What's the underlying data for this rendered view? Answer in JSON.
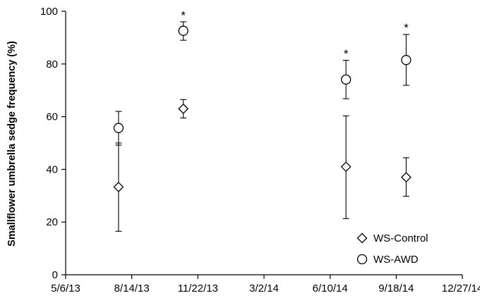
{
  "chart_data": {
    "type": "scatter",
    "title": "",
    "xlabel": "",
    "ylabel": "Smallflower umbrella sedge  frequency (%)",
    "ylim": [
      0,
      100
    ],
    "yticks": [
      0,
      20,
      40,
      60,
      80,
      100
    ],
    "xlim": [
      "5/6/13",
      "12/27/14"
    ],
    "xticks": [
      "5/6/13",
      "8/14/13",
      "11/22/13",
      "3/2/14",
      "6/10/14",
      "9/18/14",
      "12/27/14"
    ],
    "grid": false,
    "legend_position": "bottom-right",
    "series": [
      {
        "name": "WS-Control",
        "marker": "diamond",
        "points": [
          {
            "x": "7/25/13",
            "y": 33.3,
            "low": 16.5,
            "high": 50.0
          },
          {
            "x": "10/31/13",
            "y": 63.0,
            "low": 59.5,
            "high": 66.5
          },
          {
            "x": "7/4/14",
            "y": 41.0,
            "low": 21.3,
            "high": 60.3
          },
          {
            "x": "10/3/14",
            "y": 37.0,
            "low": 29.8,
            "high": 44.4
          }
        ]
      },
      {
        "name": "WS-AWD",
        "marker": "circle",
        "points": [
          {
            "x": "7/25/13",
            "y": 55.7,
            "low": 49.2,
            "high": 62.0
          },
          {
            "x": "10/31/13",
            "y": 92.6,
            "low": 89.0,
            "high": 96.0
          },
          {
            "x": "7/4/14",
            "y": 74.1,
            "low": 66.8,
            "high": 81.4
          },
          {
            "x": "10/3/14",
            "y": 81.5,
            "low": 71.9,
            "high": 91.2
          }
        ]
      }
    ],
    "annotations": [
      {
        "text": "*",
        "x": "10/31/13",
        "y": 98.5
      },
      {
        "text": "*",
        "x": "7/4/14",
        "y": 84.0
      },
      {
        "text": "*",
        "x": "10/3/14",
        "y": 93.8
      }
    ]
  }
}
